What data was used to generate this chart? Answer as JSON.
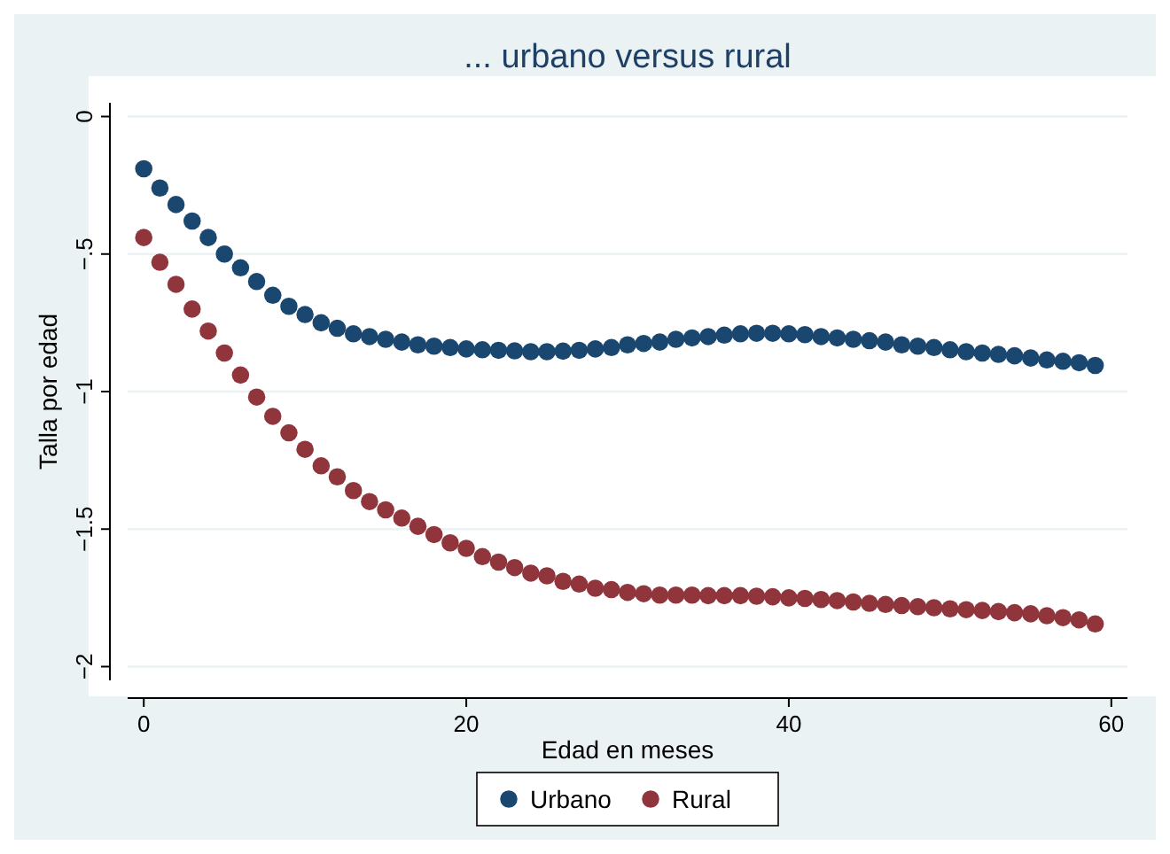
{
  "chart_data": {
    "type": "scatter",
    "title": "... urbano versus rural",
    "xlabel": "Edad en meses",
    "ylabel": "Talla por edad",
    "x": [
      0,
      1,
      2,
      3,
      4,
      5,
      6,
      7,
      8,
      9,
      10,
      11,
      12,
      13,
      14,
      15,
      16,
      17,
      18,
      19,
      20,
      21,
      22,
      23,
      24,
      25,
      26,
      27,
      28,
      29,
      30,
      31,
      32,
      33,
      34,
      35,
      36,
      37,
      38,
      39,
      40,
      41,
      42,
      43,
      44,
      45,
      46,
      47,
      48,
      49,
      50,
      51,
      52,
      53,
      54,
      55,
      56,
      57,
      58,
      59
    ],
    "series": [
      {
        "name": "Urbano",
        "color": "#1a476f",
        "values": [
          -0.19,
          -0.26,
          -0.32,
          -0.38,
          -0.44,
          -0.5,
          -0.55,
          -0.6,
          -0.65,
          -0.69,
          -0.72,
          -0.75,
          -0.77,
          -0.79,
          -0.8,
          -0.81,
          -0.82,
          -0.83,
          -0.835,
          -0.84,
          -0.845,
          -0.848,
          -0.85,
          -0.852,
          -0.855,
          -0.855,
          -0.853,
          -0.85,
          -0.845,
          -0.84,
          -0.83,
          -0.825,
          -0.82,
          -0.81,
          -0.805,
          -0.8,
          -0.795,
          -0.79,
          -0.788,
          -0.788,
          -0.79,
          -0.793,
          -0.8,
          -0.805,
          -0.81,
          -0.815,
          -0.82,
          -0.83,
          -0.835,
          -0.84,
          -0.848,
          -0.855,
          -0.86,
          -0.865,
          -0.87,
          -0.878,
          -0.885,
          -0.89,
          -0.895,
          -0.905
        ]
      },
      {
        "name": "Rural",
        "color": "#90353b",
        "values": [
          -0.44,
          -0.53,
          -0.61,
          -0.7,
          -0.78,
          -0.86,
          -0.94,
          -1.02,
          -1.09,
          -1.15,
          -1.21,
          -1.27,
          -1.31,
          -1.36,
          -1.4,
          -1.43,
          -1.46,
          -1.49,
          -1.52,
          -1.55,
          -1.57,
          -1.6,
          -1.62,
          -1.64,
          -1.66,
          -1.67,
          -1.69,
          -1.7,
          -1.715,
          -1.72,
          -1.73,
          -1.735,
          -1.74,
          -1.74,
          -1.74,
          -1.742,
          -1.742,
          -1.742,
          -1.744,
          -1.746,
          -1.75,
          -1.752,
          -1.756,
          -1.76,
          -1.765,
          -1.77,
          -1.774,
          -1.778,
          -1.782,
          -1.786,
          -1.79,
          -1.793,
          -1.796,
          -1.8,
          -1.804,
          -1.808,
          -1.815,
          -1.822,
          -1.83,
          -1.845
        ]
      }
    ],
    "xlim": [
      -1,
      61
    ],
    "xticks": [
      0,
      20,
      40,
      60
    ],
    "ylim": [
      -2.05,
      0.05
    ],
    "yticks": [
      {
        "value": -2,
        "label": "−2"
      },
      {
        "value": -1.5,
        "label": "−1.5"
      },
      {
        "value": -1,
        "label": "−1"
      },
      {
        "value": -0.5,
        "label": "−.5"
      },
      0
    ],
    "grid": "y",
    "legend": "bottom",
    "marker": "circle"
  }
}
